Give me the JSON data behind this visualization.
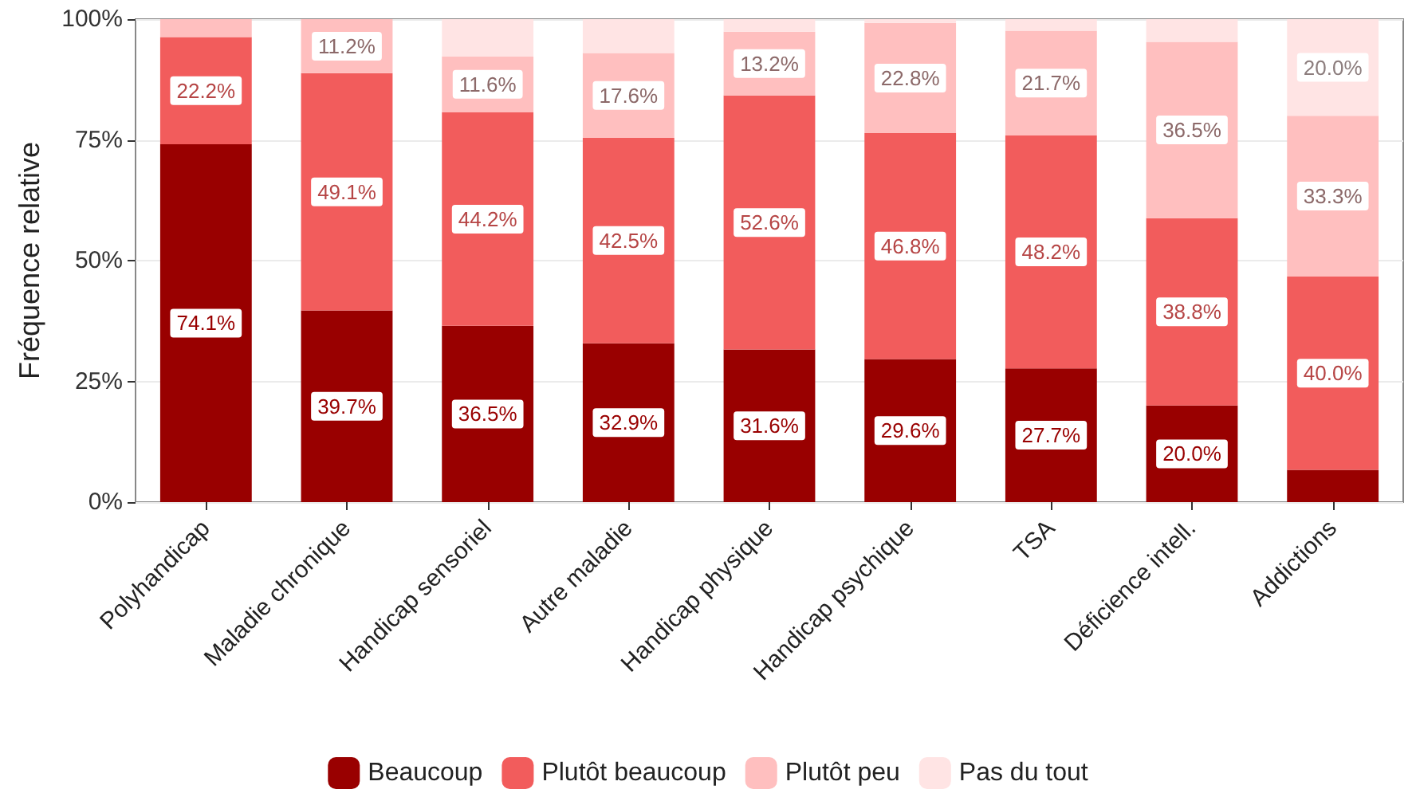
{
  "chart_data": {
    "type": "bar",
    "stacked": true,
    "ylabel": "Fréquence relative",
    "categories": [
      "Polyhandicap",
      "Maladie chronique",
      "Handicap sensoriel",
      "Autre maladie",
      "Handicap physique",
      "Handicap psychique",
      "TSA",
      "Déficience intell.",
      "Addictions"
    ],
    "series": [
      {
        "name": "Beaucoup",
        "color": "#990000",
        "values": [
          74.1,
          39.7,
          36.5,
          32.9,
          31.6,
          29.6,
          27.7,
          20.0,
          6.7
        ],
        "value_labels": [
          "74.1%",
          "39.7%",
          "36.5%",
          "32.9%",
          "31.6%",
          "29.6%",
          "27.7%",
          "20.0%",
          null
        ]
      },
      {
        "name": "Plutôt beaucoup",
        "color": "#f25c5c",
        "values": [
          22.2,
          49.1,
          44.2,
          42.5,
          52.6,
          46.8,
          48.2,
          38.8,
          40.0
        ],
        "value_labels": [
          "22.2%",
          "49.1%",
          "44.2%",
          "42.5%",
          "52.6%",
          "46.8%",
          "48.2%",
          "38.8%",
          "40.0%"
        ]
      },
      {
        "name": "Plutôt peu",
        "color": "#ffbfbf",
        "values": [
          3.7,
          11.2,
          11.6,
          17.6,
          13.2,
          22.8,
          21.7,
          36.5,
          33.3
        ],
        "value_labels": [
          null,
          "11.2%",
          "11.6%",
          "17.6%",
          "13.2%",
          "22.8%",
          "21.7%",
          "36.5%",
          "33.3%"
        ]
      },
      {
        "name": "Pas du tout",
        "color": "#ffe4e4",
        "values": [
          0,
          0,
          7.7,
          7.0,
          2.6,
          0.8,
          2.4,
          4.7,
          20.0
        ],
        "value_labels": [
          null,
          null,
          null,
          null,
          null,
          null,
          null,
          null,
          "20.0%"
        ]
      }
    ],
    "ylim": [
      0,
      100
    ],
    "yticks": [
      {
        "value": 0,
        "label": "0%"
      },
      {
        "value": 25,
        "label": "25%"
      },
      {
        "value": 50,
        "label": "50%"
      },
      {
        "value": 75,
        "label": "75%"
      },
      {
        "value": 100,
        "label": "100%"
      }
    ],
    "grid": "y",
    "legend": "bottom"
  }
}
